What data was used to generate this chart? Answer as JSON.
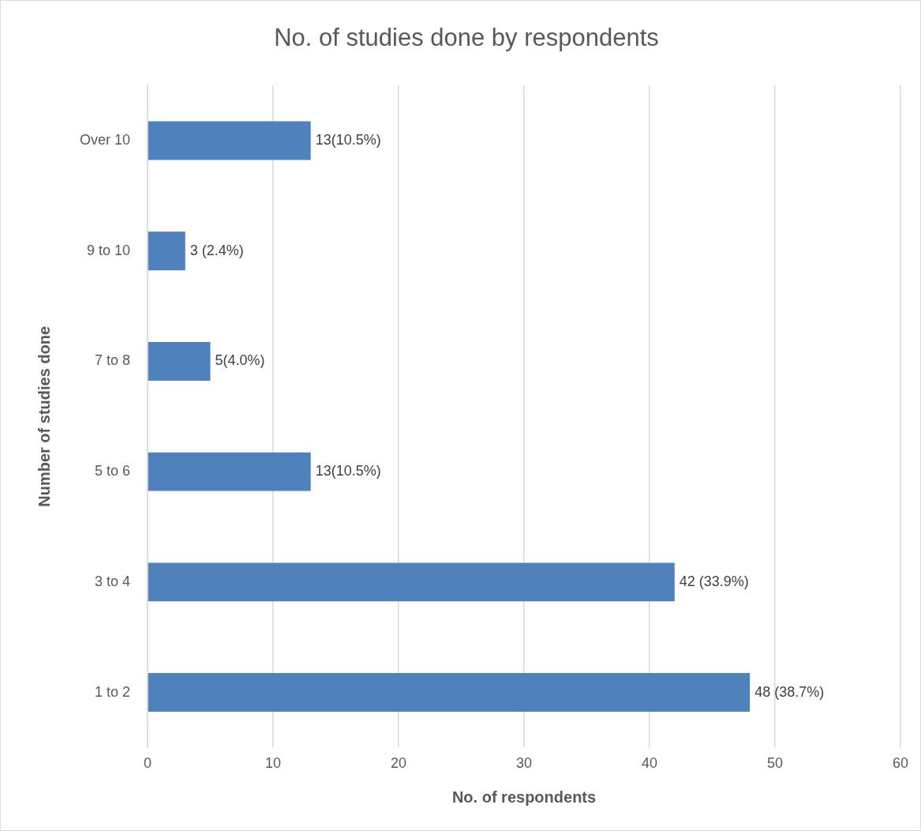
{
  "chart_data": {
    "type": "bar",
    "orientation": "horizontal",
    "title": "No. of studies done by respondents",
    "xlabel": "No. of respondents",
    "ylabel": "Number of studies done",
    "categories": [
      "Over 10",
      "9 to 10",
      "7 to 8",
      "5 to 6",
      "3 to 4",
      "1 to 2"
    ],
    "values": [
      13,
      3,
      5,
      13,
      42,
      48
    ],
    "value_labels": [
      "13(10.5%)",
      "3 (2.4%)",
      "5(4.0%)",
      "13(10.5%)",
      "42 (33.9%)",
      "48 (38.7%)"
    ],
    "color": "#4f81bd",
    "xlim": [
      0,
      60
    ],
    "xticks": [
      0,
      10,
      20,
      30,
      40,
      50,
      60
    ],
    "grid": "x"
  }
}
